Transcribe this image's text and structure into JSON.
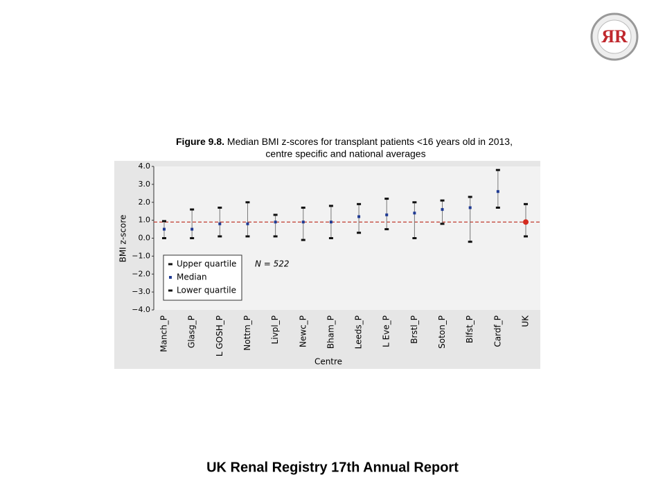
{
  "logo": {
    "text": "ЯR"
  },
  "footer": "UK Renal Registry 17th Annual Report",
  "chart_data": {
    "type": "range",
    "title_bold": "Figure 9.8.",
    "title": "Median BMI z-scores for transplant patients <16 years old in 2013,",
    "subtitle": "centre specific and national averages",
    "x_label": "Centre",
    "y_label": "BMI z-score",
    "annotation": "N = 522",
    "categories": [
      "Manch_P",
      "Glasg_P",
      "L GOSH_P",
      "Nottm_P",
      "Livpl_P",
      "Newc_P",
      "Bham_P",
      "Leeds_P",
      "L Eve_P",
      "Brstl_P",
      "Soton_P",
      "Blfst_P",
      "Cardf_P",
      "UK"
    ],
    "series": [
      {
        "name": "Upper quartile",
        "color": "#111111",
        "values": [
          0.95,
          1.6,
          1.7,
          2.0,
          1.3,
          1.7,
          1.8,
          1.9,
          2.2,
          2.0,
          2.1,
          2.3,
          3.8,
          1.9
        ]
      },
      {
        "name": "Median",
        "color": "#1f3a93",
        "colors": [
          "#1f3a93",
          "#1f3a93",
          "#1f3a93",
          "#1f3a93",
          "#1f3a93",
          "#1f3a93",
          "#1f3a93",
          "#1f3a93",
          "#1f3a93",
          "#1f3a93",
          "#1f3a93",
          "#1f3a93",
          "#1f3a93",
          "#d42a1e"
        ],
        "values": [
          0.5,
          0.5,
          0.8,
          0.8,
          0.9,
          0.9,
          0.9,
          1.2,
          1.3,
          1.4,
          1.6,
          1.7,
          2.6,
          0.9
        ]
      },
      {
        "name": "Lower quartile",
        "color": "#111111",
        "values": [
          0.0,
          0.0,
          0.1,
          0.1,
          0.1,
          -0.1,
          0.0,
          0.3,
          0.5,
          0.0,
          0.8,
          -0.2,
          1.7,
          0.1
        ]
      }
    ],
    "reference_line": {
      "value": 0.9,
      "color": "#c0392b"
    },
    "ylim": [
      -4,
      4
    ],
    "yticks": [
      {
        "value": 4,
        "label": "4.0"
      },
      {
        "value": 3,
        "label": "3.0"
      },
      {
        "value": 2,
        "label": "2.0"
      },
      {
        "value": 1,
        "label": "1.0"
      },
      {
        "value": 0,
        "label": "0.0"
      },
      {
        "value": -1,
        "label": "−1.0"
      },
      {
        "value": -2,
        "label": "−2.0"
      },
      {
        "value": -3,
        "label": "−3.0"
      },
      {
        "value": -4,
        "label": "−4.0"
      }
    ],
    "grid": false
  }
}
